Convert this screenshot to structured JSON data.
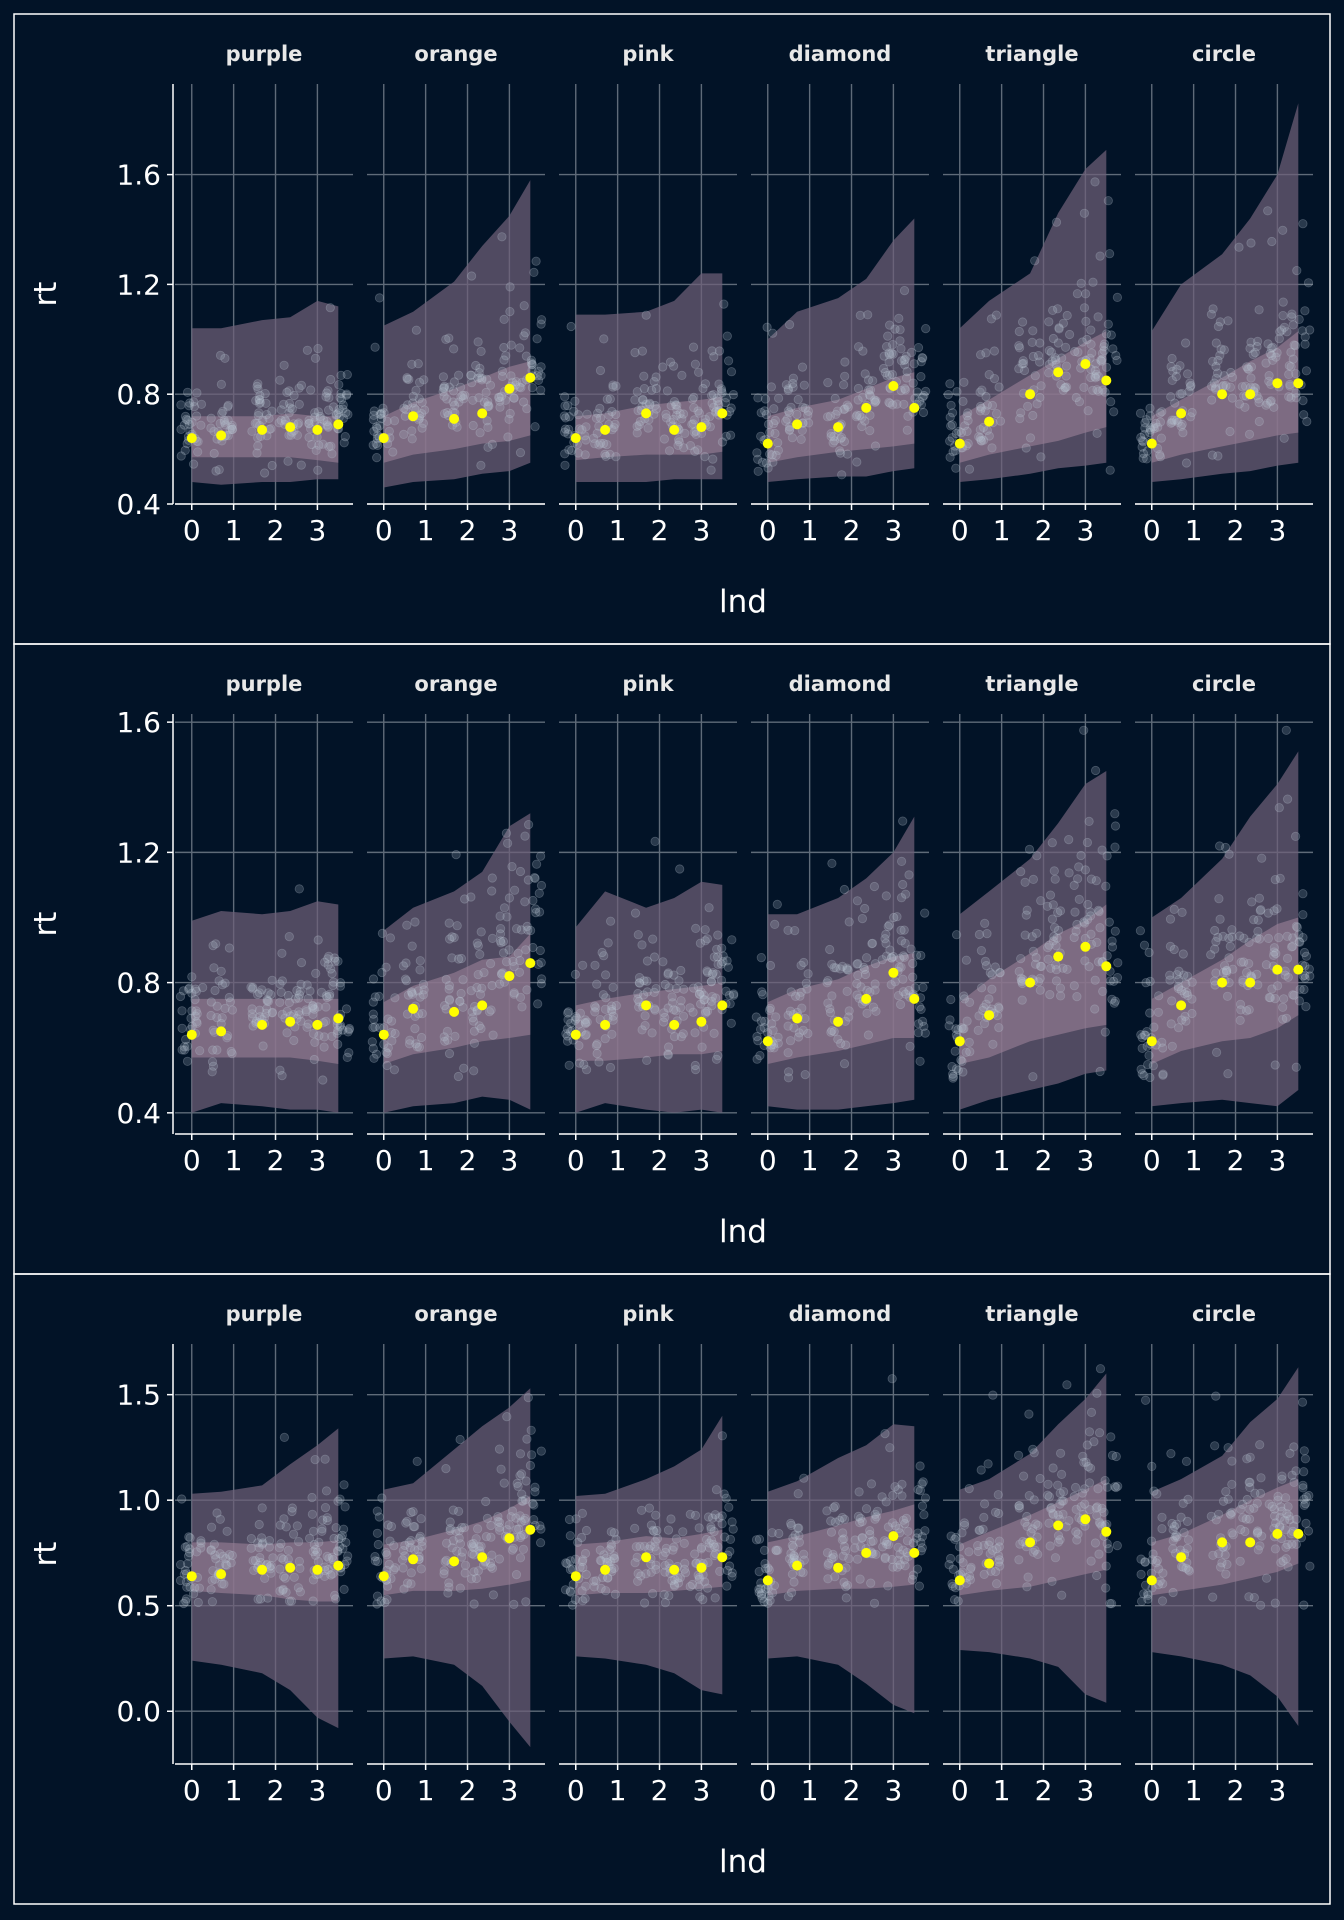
{
  "colors": {
    "background": "#021327",
    "grid": "#5f6b79",
    "outer_band": "#6f5f78",
    "inner_band": "#9a7f96",
    "raw_points": "#b8c4d2",
    "mean_points": "#ffff00",
    "panel_border": "#ffffff"
  },
  "chart_data": [
    {
      "type": "scatter",
      "facets": [
        "purple",
        "orange",
        "pink",
        "diamond",
        "triangle",
        "circle"
      ],
      "xlabel": "lnd",
      "ylabel": "rt",
      "xticks": [
        0,
        1,
        2,
        3
      ],
      "yticks": [
        0.4,
        0.8,
        1.2,
        1.6
      ],
      "xlim": [
        -0.4,
        3.85
      ],
      "ylim": [
        0.4,
        1.93
      ],
      "grid": true,
      "x_positions": [
        0,
        0.7,
        1.68,
        2.35,
        3,
        3.5
      ],
      "series": [
        {
          "facet": "purple",
          "mean": [
            0.64,
            0.65,
            0.67,
            0.68,
            0.67,
            0.69
          ],
          "inner_low": [
            0.57,
            0.57,
            0.57,
            0.57,
            0.56,
            0.55
          ],
          "inner_high": [
            0.72,
            0.72,
            0.72,
            0.73,
            0.72,
            0.72
          ],
          "outer_low": [
            0.48,
            0.47,
            0.48,
            0.48,
            0.49,
            0.49
          ],
          "outer_high": [
            1.04,
            1.04,
            1.07,
            1.08,
            1.14,
            1.12
          ]
        },
        {
          "facet": "orange",
          "mean": [
            0.64,
            0.72,
            0.71,
            0.73,
            0.82,
            0.86
          ],
          "inner_low": [
            0.55,
            0.58,
            0.6,
            0.62,
            0.63,
            0.65
          ],
          "inner_high": [
            0.72,
            0.77,
            0.82,
            0.86,
            0.9,
            0.92
          ],
          "outer_low": [
            0.46,
            0.48,
            0.49,
            0.51,
            0.52,
            0.55
          ],
          "outer_high": [
            1.05,
            1.1,
            1.21,
            1.34,
            1.45,
            1.58
          ]
        },
        {
          "facet": "pink",
          "mean": [
            0.64,
            0.67,
            0.73,
            0.67,
            0.68,
            0.73
          ],
          "inner_low": [
            0.56,
            0.57,
            0.58,
            0.58,
            0.58,
            0.59
          ],
          "inner_high": [
            0.72,
            0.73,
            0.76,
            0.77,
            0.78,
            0.79
          ],
          "outer_low": [
            0.48,
            0.48,
            0.48,
            0.49,
            0.49,
            0.49
          ],
          "outer_high": [
            1.09,
            1.09,
            1.1,
            1.14,
            1.24,
            1.24
          ]
        },
        {
          "facet": "diamond",
          "mean": [
            0.62,
            0.69,
            0.68,
            0.75,
            0.83,
            0.75
          ],
          "inner_low": [
            0.55,
            0.57,
            0.59,
            0.6,
            0.61,
            0.62
          ],
          "inner_high": [
            0.72,
            0.75,
            0.78,
            0.82,
            0.86,
            0.88
          ],
          "outer_low": [
            0.48,
            0.49,
            0.5,
            0.5,
            0.52,
            0.53
          ],
          "outer_high": [
            1.0,
            1.1,
            1.15,
            1.22,
            1.36,
            1.44
          ]
        },
        {
          "facet": "triangle",
          "mean": [
            0.62,
            0.7,
            0.8,
            0.88,
            0.91,
            0.85
          ],
          "inner_low": [
            0.55,
            0.58,
            0.61,
            0.63,
            0.66,
            0.68
          ],
          "inner_high": [
            0.72,
            0.78,
            0.87,
            0.93,
            0.99,
            1.03
          ],
          "outer_low": [
            0.48,
            0.49,
            0.51,
            0.53,
            0.54,
            0.55
          ],
          "outer_high": [
            1.04,
            1.14,
            1.24,
            1.46,
            1.62,
            1.69
          ]
        },
        {
          "facet": "circle",
          "mean": [
            0.62,
            0.73,
            0.8,
            0.8,
            0.84,
            0.84
          ],
          "inner_low": [
            0.55,
            0.58,
            0.61,
            0.63,
            0.65,
            0.66
          ],
          "inner_high": [
            0.72,
            0.78,
            0.86,
            0.92,
            0.97,
            1.03
          ],
          "outer_low": [
            0.48,
            0.49,
            0.51,
            0.52,
            0.54,
            0.55
          ],
          "outer_high": [
            1.03,
            1.2,
            1.31,
            1.44,
            1.6,
            1.86
          ]
        }
      ]
    },
    {
      "type": "scatter",
      "facets": [
        "purple",
        "orange",
        "pink",
        "diamond",
        "triangle",
        "circle"
      ],
      "xlabel": "lnd",
      "ylabel": "rt",
      "xticks": [
        0,
        1,
        2,
        3
      ],
      "yticks": [
        0.4,
        0.8,
        1.2,
        1.6
      ],
      "xlim": [
        -0.4,
        3.85
      ],
      "ylim": [
        0.335,
        1.625
      ],
      "grid": true,
      "x_positions": [
        0,
        0.7,
        1.68,
        2.35,
        3,
        3.5
      ],
      "series": [
        {
          "facet": "purple",
          "mean": [
            0.64,
            0.65,
            0.67,
            0.68,
            0.67,
            0.69
          ],
          "inner_low": [
            0.57,
            0.57,
            0.57,
            0.57,
            0.56,
            0.55
          ],
          "inner_high": [
            0.75,
            0.75,
            0.75,
            0.75,
            0.75,
            0.75
          ],
          "outer_low": [
            0.4,
            0.43,
            0.42,
            0.41,
            0.41,
            0.4
          ],
          "outer_high": [
            0.99,
            1.02,
            1.01,
            1.02,
            1.05,
            1.04
          ]
        },
        {
          "facet": "orange",
          "mean": [
            0.64,
            0.72,
            0.71,
            0.73,
            0.82,
            0.86
          ],
          "inner_low": [
            0.55,
            0.58,
            0.6,
            0.62,
            0.63,
            0.64
          ],
          "inner_high": [
            0.74,
            0.79,
            0.83,
            0.87,
            0.88,
            0.95
          ],
          "outer_low": [
            0.4,
            0.42,
            0.43,
            0.45,
            0.44,
            0.41
          ],
          "outer_high": [
            0.96,
            1.03,
            1.08,
            1.14,
            1.28,
            1.32
          ]
        },
        {
          "facet": "pink",
          "mean": [
            0.64,
            0.67,
            0.73,
            0.67,
            0.68,
            0.73
          ],
          "inner_low": [
            0.56,
            0.56,
            0.57,
            0.58,
            0.58,
            0.59
          ],
          "inner_high": [
            0.73,
            0.75,
            0.77,
            0.78,
            0.79,
            0.8
          ],
          "outer_low": [
            0.4,
            0.43,
            0.41,
            0.4,
            0.41,
            0.4
          ],
          "outer_high": [
            0.97,
            1.08,
            1.03,
            1.06,
            1.11,
            1.1
          ]
        },
        {
          "facet": "diamond",
          "mean": [
            0.62,
            0.69,
            0.68,
            0.75,
            0.83,
            0.75
          ],
          "inner_low": [
            0.55,
            0.57,
            0.59,
            0.61,
            0.63,
            0.63
          ],
          "inner_high": [
            0.74,
            0.78,
            0.81,
            0.85,
            0.88,
            0.89
          ],
          "outer_low": [
            0.42,
            0.41,
            0.41,
            0.42,
            0.43,
            0.44
          ],
          "outer_high": [
            1.01,
            1.01,
            1.06,
            1.12,
            1.2,
            1.31
          ]
        },
        {
          "facet": "triangle",
          "mean": [
            0.62,
            0.7,
            0.8,
            0.88,
            0.91,
            0.85
          ],
          "inner_low": [
            0.55,
            0.57,
            0.62,
            0.64,
            0.66,
            0.67
          ],
          "inner_high": [
            0.74,
            0.81,
            0.89,
            0.95,
            0.99,
            1.04
          ],
          "outer_low": [
            0.41,
            0.44,
            0.47,
            0.49,
            0.52,
            0.53
          ],
          "outer_high": [
            1.01,
            1.08,
            1.18,
            1.29,
            1.41,
            1.45
          ]
        },
        {
          "facet": "circle",
          "mean": [
            0.62,
            0.73,
            0.8,
            0.8,
            0.84,
            0.84
          ],
          "inner_low": [
            0.55,
            0.59,
            0.62,
            0.63,
            0.66,
            0.7
          ],
          "inner_high": [
            0.75,
            0.8,
            0.87,
            0.93,
            0.98,
            1.0
          ],
          "outer_low": [
            0.42,
            0.43,
            0.44,
            0.43,
            0.42,
            0.47
          ],
          "outer_high": [
            1.0,
            1.06,
            1.18,
            1.31,
            1.41,
            1.51
          ]
        }
      ]
    },
    {
      "type": "scatter",
      "facets": [
        "purple",
        "orange",
        "pink",
        "diamond",
        "triangle",
        "circle"
      ],
      "xlabel": "lnd",
      "ylabel": "rt",
      "xticks": [
        0,
        1,
        2,
        3
      ],
      "yticks": [
        0.0,
        0.5,
        1.0,
        1.5
      ],
      "ytick_labels": [
        "0.0",
        "0.5",
        "1.0",
        "1.5"
      ],
      "xlim": [
        -0.4,
        3.85
      ],
      "ylim": [
        -0.25,
        1.74
      ],
      "grid": true,
      "x_positions": [
        0,
        0.7,
        1.68,
        2.35,
        3,
        3.5
      ],
      "series": [
        {
          "facet": "purple",
          "mean": [
            0.64,
            0.65,
            0.67,
            0.68,
            0.67,
            0.69
          ],
          "inner_low": [
            0.57,
            0.56,
            0.55,
            0.53,
            0.52,
            0.52
          ],
          "inner_high": [
            0.8,
            0.8,
            0.79,
            0.8,
            0.8,
            0.81
          ],
          "outer_low": [
            0.24,
            0.22,
            0.18,
            0.1,
            -0.03,
            -0.08
          ],
          "outer_high": [
            1.03,
            1.04,
            1.07,
            1.17,
            1.26,
            1.34
          ]
        },
        {
          "facet": "orange",
          "mean": [
            0.64,
            0.72,
            0.71,
            0.73,
            0.82,
            0.86
          ],
          "inner_low": [
            0.55,
            0.57,
            0.57,
            0.58,
            0.6,
            0.62
          ],
          "inner_high": [
            0.79,
            0.81,
            0.86,
            0.9,
            0.96,
            1.02
          ],
          "outer_low": [
            0.25,
            0.26,
            0.22,
            0.12,
            -0.05,
            -0.17
          ],
          "outer_high": [
            1.05,
            1.08,
            1.24,
            1.35,
            1.44,
            1.53
          ]
        },
        {
          "facet": "pink",
          "mean": [
            0.64,
            0.67,
            0.73,
            0.67,
            0.68,
            0.73
          ],
          "inner_low": [
            0.55,
            0.56,
            0.56,
            0.57,
            0.58,
            0.59
          ],
          "inner_high": [
            0.79,
            0.8,
            0.83,
            0.82,
            0.84,
            0.86
          ],
          "outer_low": [
            0.26,
            0.25,
            0.22,
            0.18,
            0.1,
            0.08
          ],
          "outer_high": [
            1.02,
            1.03,
            1.1,
            1.16,
            1.24,
            1.4
          ]
        },
        {
          "facet": "diamond",
          "mean": [
            0.62,
            0.69,
            0.68,
            0.75,
            0.83,
            0.75
          ],
          "inner_low": [
            0.55,
            0.57,
            0.58,
            0.58,
            0.59,
            0.6
          ],
          "inner_high": [
            0.8,
            0.83,
            0.88,
            0.92,
            0.95,
            0.98
          ],
          "outer_low": [
            0.25,
            0.26,
            0.22,
            0.13,
            0.03,
            -0.01
          ],
          "outer_high": [
            1.04,
            1.09,
            1.2,
            1.26,
            1.36,
            1.35
          ]
        },
        {
          "facet": "triangle",
          "mean": [
            0.62,
            0.7,
            0.8,
            0.88,
            0.91,
            0.85
          ],
          "inner_low": [
            0.55,
            0.57,
            0.59,
            0.62,
            0.65,
            0.67
          ],
          "inner_high": [
            0.79,
            0.85,
            0.93,
            0.99,
            1.05,
            1.1
          ],
          "outer_low": [
            0.29,
            0.28,
            0.25,
            0.21,
            0.08,
            0.04
          ],
          "outer_high": [
            1.05,
            1.1,
            1.22,
            1.36,
            1.48,
            1.6
          ]
        },
        {
          "facet": "circle",
          "mean": [
            0.62,
            0.73,
            0.8,
            0.8,
            0.84,
            0.84
          ],
          "inner_low": [
            0.55,
            0.57,
            0.6,
            0.63,
            0.66,
            0.7
          ],
          "inner_high": [
            0.8,
            0.84,
            0.93,
            1.0,
            1.06,
            1.1
          ],
          "outer_low": [
            0.28,
            0.26,
            0.22,
            0.17,
            0.07,
            -0.07
          ],
          "outer_high": [
            1.04,
            1.1,
            1.21,
            1.37,
            1.48,
            1.63
          ]
        }
      ]
    }
  ]
}
